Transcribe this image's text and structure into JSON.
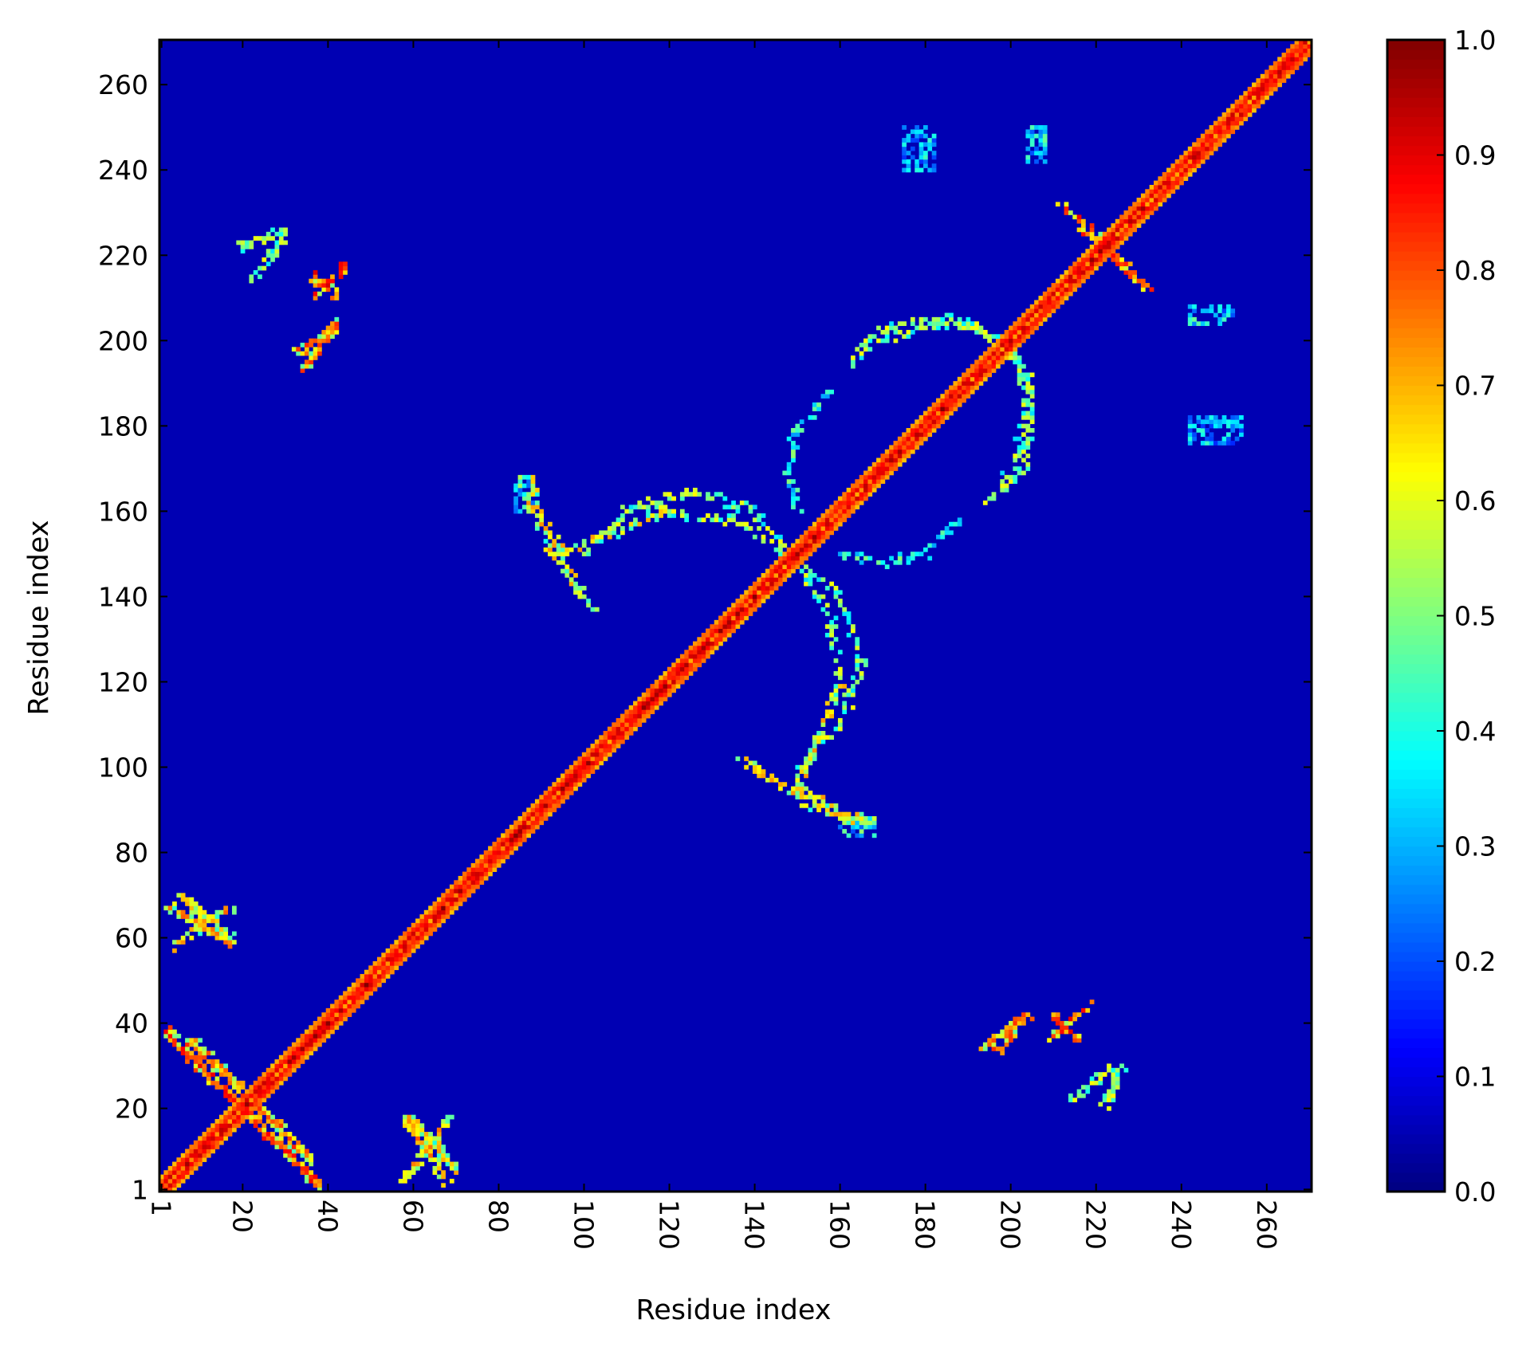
{
  "chart_data": {
    "type": "heatmap",
    "title": "",
    "xlabel": "Residue index",
    "ylabel": "Residue index",
    "xlim": [
      1,
      270
    ],
    "ylim": [
      1,
      270
    ],
    "x_ticks": [
      "1",
      "20",
      "40",
      "60",
      "80",
      "100",
      "120",
      "140",
      "160",
      "180",
      "200",
      "220",
      "240",
      "260"
    ],
    "y_ticks": [
      "1",
      "20",
      "40",
      "60",
      "80",
      "100",
      "120",
      "140",
      "160",
      "180",
      "200",
      "220",
      "240",
      "260"
    ],
    "x_tick_rotation": "vertical",
    "grid": false,
    "colormap": "jet",
    "colorbar": {
      "range": [
        0.0,
        1.0
      ],
      "ticks": [
        "0.0",
        "0.1",
        "0.2",
        "0.3",
        "0.4",
        "0.5",
        "0.6",
        "0.7",
        "0.8",
        "0.9",
        "1.0"
      ],
      "placement": "right"
    },
    "n_residues": 270,
    "background_value": 0.05,
    "diagonal_band": {
      "from": 1,
      "to": 270,
      "value": 0.9
    },
    "contact_features": [
      {
        "kind": "antidiagonal",
        "from": [
          2,
          38
        ],
        "to": [
          38,
          2
        ],
        "value": 0.85
      },
      {
        "kind": "antidiagonal",
        "from": [
          8,
          36
        ],
        "to": [
          36,
          8
        ],
        "value": 0.8
      },
      {
        "kind": "diagonal",
        "from": [
          3,
          68
        ],
        "to": [
          18,
          58
        ],
        "value": 0.75
      },
      {
        "kind": "diagonal",
        "from": [
          58,
          3
        ],
        "to": [
          68,
          18
        ],
        "value": 0.75
      },
      {
        "kind": "diagonal",
        "from": [
          60,
          17
        ],
        "to": [
          70,
          6
        ],
        "value": 0.7
      },
      {
        "kind": "diagonal",
        "from": [
          17,
          60
        ],
        "to": [
          6,
          70
        ],
        "value": 0.7
      },
      {
        "kind": "antidiagonal",
        "from": [
          36,
          216
        ],
        "to": [
          42,
          210
        ],
        "value": 0.9
      },
      {
        "kind": "diagonal",
        "from": [
          33,
          197
        ],
        "to": [
          42,
          203
        ],
        "value": 0.8
      },
      {
        "kind": "diagonal",
        "from": [
          20,
          222
        ],
        "to": [
          30,
          226
        ],
        "value": 0.6
      },
      {
        "kind": "arc",
        "points": [
          [
            120,
            160
          ],
          [
            95,
            150
          ],
          [
            88,
            162
          ],
          [
            97,
            145
          ],
          [
            100,
            140
          ]
        ],
        "value": 0.7
      },
      {
        "kind": "arc",
        "points": [
          [
            115,
            160
          ],
          [
            135,
            158
          ],
          [
            148,
            150
          ],
          [
            160,
            140
          ],
          [
            165,
            125
          ],
          [
            160,
            110
          ],
          [
            150,
            100
          ]
        ],
        "value": 0.6
      },
      {
        "kind": "arc",
        "points": [
          [
            137,
            102
          ],
          [
            150,
            92
          ],
          [
            162,
            88
          ],
          [
            168,
            88
          ]
        ],
        "value": 0.7
      },
      {
        "kind": "arc",
        "points": [
          [
            165,
            198
          ],
          [
            175,
            202
          ],
          [
            190,
            205
          ],
          [
            200,
            198
          ],
          [
            205,
            185
          ],
          [
            203,
            170
          ],
          [
            195,
            163
          ]
        ],
        "value": 0.6
      },
      {
        "kind": "arc",
        "points": [
          [
            160,
            150
          ],
          [
            170,
            148
          ],
          [
            180,
            150
          ],
          [
            188,
            158
          ]
        ],
        "value": 0.5
      },
      {
        "kind": "antidiagonal",
        "from": [
          212,
          232
        ],
        "to": [
          228,
          216
        ],
        "value": 0.85
      },
      {
        "kind": "diagonal",
        "from": [
          193,
          34
        ],
        "to": [
          204,
          42
        ],
        "value": 0.8
      },
      {
        "kind": "diagonal",
        "from": [
          210,
          37
        ],
        "to": [
          218,
          44
        ],
        "value": 0.85
      },
      {
        "kind": "diagonal",
        "from": [
          215,
          23
        ],
        "to": [
          224,
          30
        ],
        "value": 0.6
      },
      {
        "kind": "block",
        "from": [
          242,
          204
        ],
        "to": [
          252,
          208
        ],
        "value": 0.45
      },
      {
        "kind": "block",
        "from": [
          242,
          176
        ],
        "to": [
          254,
          182
        ],
        "value": 0.4
      },
      {
        "kind": "block",
        "from": [
          175,
          240
        ],
        "to": [
          182,
          250
        ],
        "value": 0.4
      },
      {
        "kind": "block",
        "from": [
          204,
          242
        ],
        "to": [
          208,
          250
        ],
        "value": 0.45
      },
      {
        "kind": "block",
        "from": [
          84,
          160
        ],
        "to": [
          88,
          168
        ],
        "value": 0.5
      },
      {
        "kind": "block",
        "from": [
          160,
          84
        ],
        "to": [
          168,
          88
        ],
        "value": 0.5
      }
    ]
  }
}
